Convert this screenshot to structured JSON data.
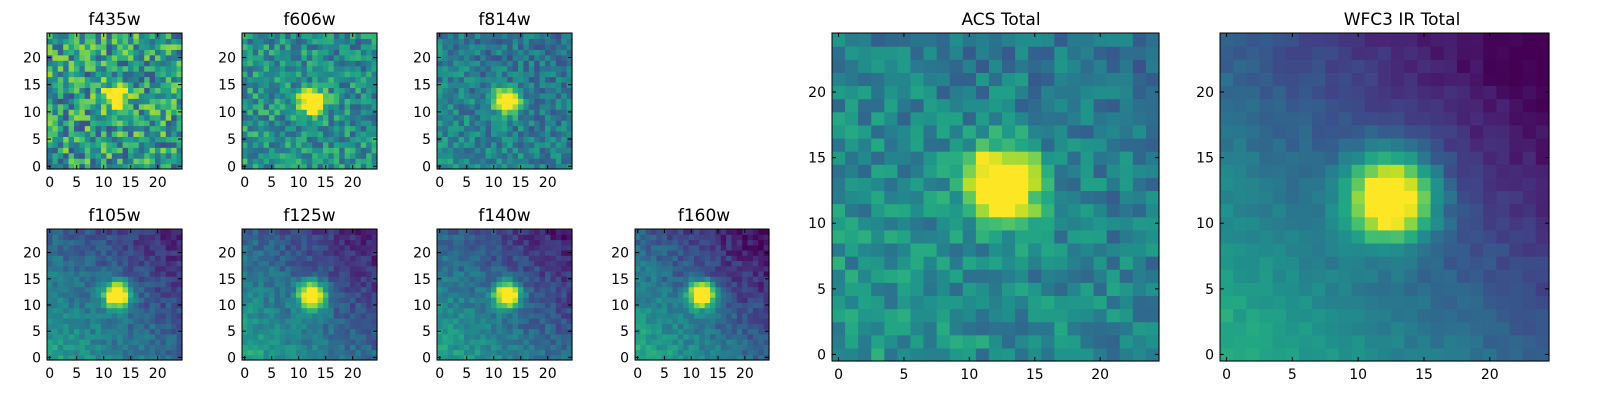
{
  "chart_data": [
    {
      "type": "heatmap",
      "title": "f435w",
      "colormap": "viridis",
      "grid": false,
      "xlim": [
        0,
        25
      ],
      "ylim": [
        0,
        25
      ],
      "xticks": [
        0,
        5,
        10,
        15,
        20
      ],
      "yticks": [
        0,
        5,
        10,
        15,
        20
      ],
      "source": {
        "center": [
          12.5,
          13
        ],
        "sigma": 1.6,
        "peak": 0.72
      },
      "background": 0.55,
      "gradient": 0.0,
      "noise": 0.3,
      "seed": 11
    },
    {
      "type": "heatmap",
      "title": "f606w",
      "colormap": "viridis",
      "grid": false,
      "xlim": [
        0,
        25
      ],
      "ylim": [
        0,
        25
      ],
      "xticks": [
        0,
        5,
        10,
        15,
        20
      ],
      "yticks": [
        0,
        5,
        10,
        15,
        20
      ],
      "source": {
        "center": [
          12.5,
          12
        ],
        "sigma": 1.5,
        "peak": 1.0
      },
      "background": 0.5,
      "gradient": 0.05,
      "noise": 0.2,
      "seed": 22
    },
    {
      "type": "heatmap",
      "title": "f814w",
      "colormap": "viridis",
      "grid": false,
      "xlim": [
        0,
        25
      ],
      "ylim": [
        0,
        25
      ],
      "xticks": [
        0,
        5,
        10,
        15,
        20
      ],
      "yticks": [
        0,
        5,
        10,
        15,
        20
      ],
      "source": {
        "center": [
          12.5,
          12
        ],
        "sigma": 1.5,
        "peak": 1.0
      },
      "background": 0.42,
      "gradient": 0.12,
      "noise": 0.16,
      "seed": 33
    },
    {
      "type": "heatmap",
      "title": "f105w",
      "colormap": "viridis",
      "grid": false,
      "xlim": [
        0,
        25
      ],
      "ylim": [
        0,
        25
      ],
      "xticks": [
        0,
        5,
        10,
        15,
        20
      ],
      "yticks": [
        0,
        5,
        10,
        15,
        20
      ],
      "source": {
        "center": [
          12.5,
          12
        ],
        "sigma": 1.7,
        "peak": 1.0
      },
      "background": 0.32,
      "gradient": 0.38,
      "noise": 0.09,
      "seed": 44
    },
    {
      "type": "heatmap",
      "title": "f125w",
      "colormap": "viridis",
      "grid": false,
      "xlim": [
        0,
        25
      ],
      "ylim": [
        0,
        25
      ],
      "xticks": [
        0,
        5,
        10,
        15,
        20
      ],
      "yticks": [
        0,
        5,
        10,
        15,
        20
      ],
      "source": {
        "center": [
          12.5,
          12
        ],
        "sigma": 1.7,
        "peak": 1.0
      },
      "background": 0.32,
      "gradient": 0.42,
      "noise": 0.09,
      "seed": 55
    },
    {
      "type": "heatmap",
      "title": "f140w",
      "colormap": "viridis",
      "grid": false,
      "xlim": [
        0,
        25
      ],
      "ylim": [
        0,
        25
      ],
      "xticks": [
        0,
        5,
        10,
        15,
        20
      ],
      "yticks": [
        0,
        5,
        10,
        15,
        20
      ],
      "source": {
        "center": [
          12.5,
          12
        ],
        "sigma": 1.6,
        "peak": 1.0
      },
      "background": 0.32,
      "gradient": 0.42,
      "noise": 0.09,
      "seed": 66
    },
    {
      "type": "heatmap",
      "title": "f160w",
      "colormap": "viridis",
      "grid": false,
      "xlim": [
        0,
        25
      ],
      "ylim": [
        0,
        25
      ],
      "xticks": [
        0,
        5,
        10,
        15,
        20
      ],
      "yticks": [
        0,
        5,
        10,
        15,
        20
      ],
      "source": {
        "center": [
          12,
          12
        ],
        "sigma": 1.7,
        "peak": 1.0
      },
      "background": 0.3,
      "gradient": 0.5,
      "noise": 0.09,
      "seed": 77
    },
    {
      "type": "heatmap",
      "title": "ACS Total",
      "colormap": "viridis",
      "grid": false,
      "xlim": [
        0,
        25
      ],
      "ylim": [
        0,
        25
      ],
      "xticks": [
        0,
        5,
        10,
        15,
        20
      ],
      "yticks": [
        0,
        5,
        10,
        15,
        20
      ],
      "source": {
        "center": [
          12.5,
          13
        ],
        "sigma": 1.9,
        "peak": 1.0
      },
      "background": 0.45,
      "gradient": 0.12,
      "noise": 0.14,
      "seed": 88
    },
    {
      "type": "heatmap",
      "title": "WFC3 IR Total",
      "colormap": "viridis",
      "grid": false,
      "xlim": [
        0,
        25
      ],
      "ylim": [
        0,
        25
      ],
      "xticks": [
        0,
        5,
        10,
        15,
        20
      ],
      "yticks": [
        0,
        5,
        10,
        15,
        20
      ],
      "source": {
        "center": [
          12.5,
          12
        ],
        "sigma": 2.2,
        "peak": 1.0
      },
      "background": 0.28,
      "gradient": 0.55,
      "noise": 0.04,
      "seed": 99
    }
  ]
}
